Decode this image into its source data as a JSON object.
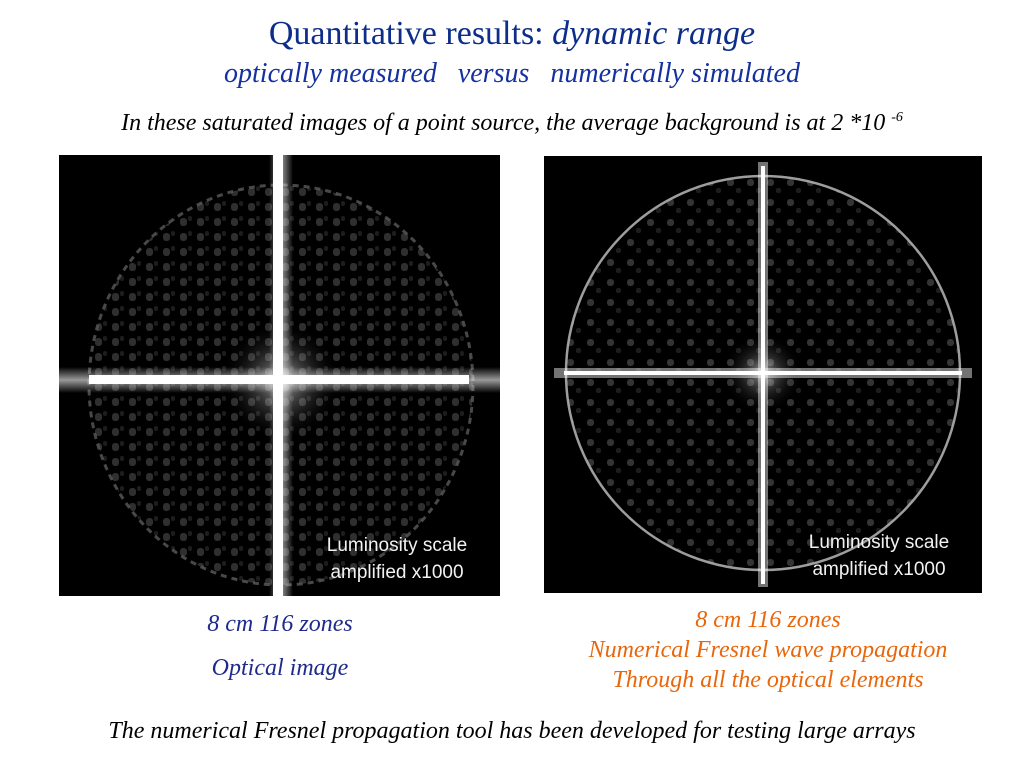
{
  "slide": {
    "title_prefix": "Quantitative results: ",
    "title_emphasis": "dynamic range",
    "subtitle": "optically measured   versus   numerically simulated",
    "intro_text": "In these saturated images of a point source, the average background is at  2 *10 ",
    "intro_exponent": "-6",
    "footer": "The numerical Fresnel propagation tool has been developed for testing large arrays"
  },
  "left_panel": {
    "overlay_line1": "Luminosity  scale",
    "overlay_line2": "amplified x1000",
    "caption_line1": "8 cm 116 zones",
    "caption_line2": "Optical image"
  },
  "right_panel": {
    "overlay_line1": "Luminosity  scale",
    "overlay_line2": "amplified x1000",
    "caption_line1": "8 cm 116 zones",
    "caption_line2": "Numerical Fresnel wave propagation",
    "caption_line3": "Through all the optical elements"
  },
  "colors": {
    "title": "#0d2d8a",
    "caption_optical": "#1f2a8c",
    "caption_numerical": "#e8670c",
    "image_background": "#000000"
  }
}
